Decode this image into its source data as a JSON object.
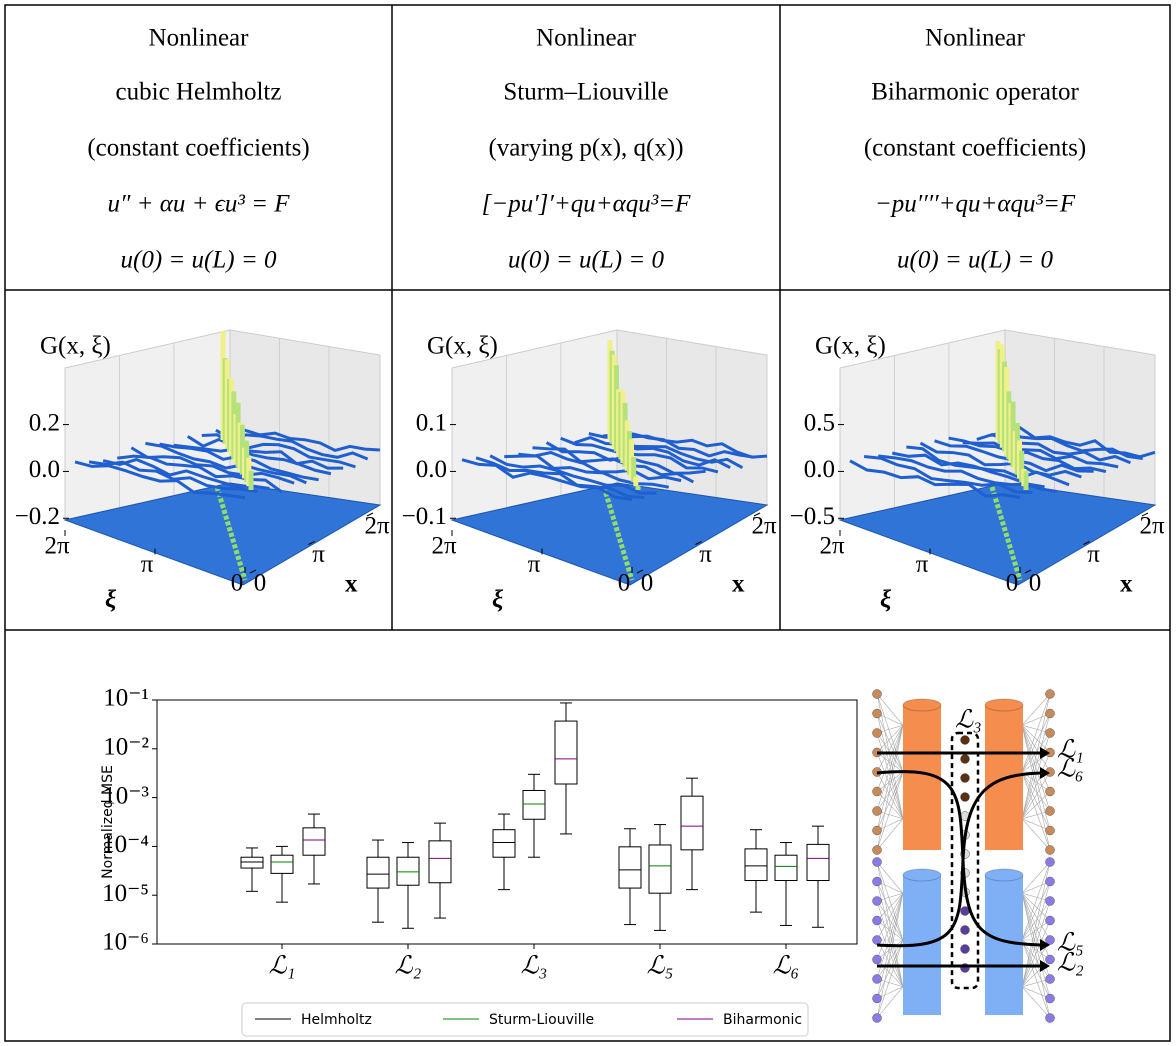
{
  "table": {
    "columns": [
      {
        "lines": [
          "Nonlinear",
          "cubic Helmholtz",
          "(constant coefficients)",
          "u″ + αu + ϵu³ = F",
          "u(0) = u(L) = 0"
        ],
        "plot": {
          "zlabel": "G(x, ξ)",
          "zlim": [
            -0.25,
            0.45
          ],
          "zticks": [
            0.2,
            {
              "value": 0,
              "label": "0.0"
            },
            {
              "value": -0.2,
              "label": "−0.2"
            }
          ],
          "xi_label": "ξ",
          "xi_lim": [
            0,
            6.2832
          ],
          "xi_ticks": [
            {
              "value": 6.2832,
              "label": "2π"
            },
            {
              "value": 3.1416,
              "label": "π"
            },
            0
          ],
          "x_label": "x",
          "x_lim": [
            0,
            6.2832
          ],
          "x_ticks": [
            0,
            {
              "value": 3.1416,
              "label": "π"
            },
            {
              "value": 6.2832,
              "label": "2π"
            }
          ]
        }
      },
      {
        "lines": [
          "Nonlinear",
          "Sturm–Liouville",
          "(varying p(x), q(x))",
          "[−pu′]′+qu+αqu³=F",
          "u(0) = u(L) = 0"
        ],
        "plot": {
          "zlabel": "G(x, ξ)",
          "zlim": [
            -0.125,
            0.225
          ],
          "zticks": [
            0.1,
            {
              "value": 0,
              "label": "0.0"
            },
            {
              "value": -0.1,
              "label": "−0.1"
            }
          ],
          "xi_label": "ξ",
          "xi_lim": [
            0,
            6.2832
          ],
          "xi_ticks": [
            {
              "value": 6.2832,
              "label": "2π"
            },
            {
              "value": 3.1416,
              "label": "π"
            },
            0
          ],
          "x_label": "x",
          "x_lim": [
            0,
            6.2832
          ],
          "x_ticks": [
            0,
            {
              "value": 3.1416,
              "label": "π"
            },
            {
              "value": 6.2832,
              "label": "2π"
            }
          ]
        }
      },
      {
        "lines": [
          "Nonlinear",
          "Biharmonic operator",
          "(constant coefficients)",
          "−pu′′′′+qu+αqu³=F",
          "u(0) = u(L) = 0"
        ],
        "plot": {
          "zlabel": "G(x, ξ)",
          "zlim": [
            -0.625,
            1.125
          ],
          "zticks": [
            0.5,
            {
              "value": 0,
              "label": "0.0"
            },
            {
              "value": -0.5,
              "label": "−0.5"
            }
          ],
          "xi_label": "ξ",
          "xi_lim": [
            0,
            6.2832
          ],
          "xi_ticks": [
            {
              "value": 6.2832,
              "label": "2π"
            },
            {
              "value": 3.1416,
              "label": "π"
            },
            0
          ],
          "x_label": "x",
          "x_lim": [
            0,
            6.2832
          ],
          "x_ticks": [
            0,
            {
              "value": 3.1416,
              "label": "π"
            },
            {
              "value": 6.2832,
              "label": "2π"
            }
          ]
        }
      }
    ]
  },
  "chart_data": {
    "type": "box",
    "ylabel": "Normalized MSE",
    "log_y": true,
    "categories": [
      "ℒ₁",
      "ℒ₂",
      "ℒ₃",
      "ℒ₅",
      "ℒ₆"
    ],
    "ylim": [
      1e-06,
      0.1
    ],
    "yticks": [
      {
        "value": 1e-06,
        "label": "10⁻⁶"
      },
      {
        "value": 1e-05,
        "label": "10⁻⁵"
      },
      {
        "value": 0.0001,
        "label": "10⁻⁴"
      },
      {
        "value": 0.001,
        "label": "10⁻³"
      },
      {
        "value": 0.01,
        "label": "10⁻²"
      },
      {
        "value": 0.1,
        "label": "10⁻¹"
      }
    ],
    "legend": "bottom",
    "series": [
      {
        "name": "Helmholtz",
        "color": "#000000",
        "whislo": [
          1.2e-05,
          2.8e-06,
          1.3e-05,
          2.5e-06,
          4.5e-06
        ],
        "q1": [
          3.6e-05,
          1.4e-05,
          6e-05,
          1.4e-05,
          2e-05
        ],
        "med": [
          4.8e-05,
          2.7e-05,
          0.00012,
          3.3e-05,
          4e-05
        ],
        "q3": [
          6e-05,
          6e-05,
          0.00022,
          9.8e-05,
          8.9e-05
        ],
        "whishi": [
          9.3e-05,
          0.000135,
          0.00046,
          0.00023,
          0.00022
        ]
      },
      {
        "name": "Sturm-Liouville",
        "color": "#008000",
        "whislo": [
          7.2e-06,
          2.1e-06,
          6e-05,
          1.9e-06,
          2.4e-06
        ],
        "q1": [
          2.8e-05,
          1.6e-05,
          0.00036,
          1.1e-05,
          2e-05
        ],
        "med": [
          4.8e-05,
          3e-05,
          0.00074,
          4e-05,
          3.9e-05
        ],
        "q3": [
          6.6e-05,
          6e-05,
          0.0014,
          0.000107,
          6.6e-05
        ],
        "whishi": [
          0.0001,
          0.00012,
          0.003,
          0.00028,
          0.00012
        ]
      },
      {
        "name": "Biharmonic",
        "color": "#800080",
        "whislo": [
          1.7e-05,
          3.4e-06,
          0.00018,
          1.3e-05,
          2.2e-06
        ],
        "q1": [
          6.6e-05,
          1.8e-05,
          0.0019,
          8.5e-05,
          2e-05
        ],
        "med": [
          0.000135,
          5.7e-05,
          0.0062,
          0.00026,
          5.7e-05
        ],
        "q3": [
          0.00024,
          0.00013,
          0.037,
          0.00107,
          0.00011
        ],
        "whishi": [
          0.00046,
          0.0003,
          0.087,
          0.0025,
          0.00026
        ]
      }
    ]
  },
  "diagram": {
    "labels": [
      "ℒ₃",
      "ℒ₁",
      "ℒ₆",
      "ℒ₅",
      "ℒ₂"
    ]
  }
}
